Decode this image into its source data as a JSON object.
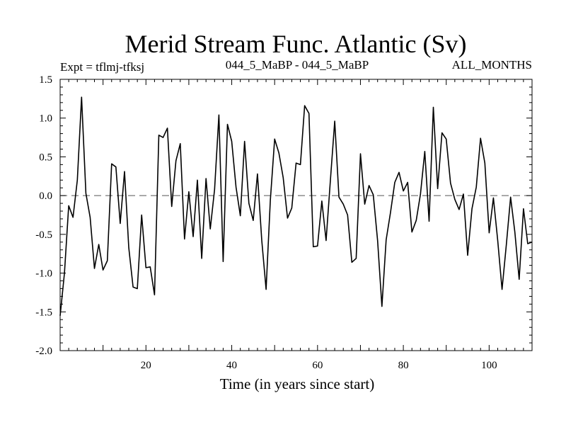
{
  "chart_data": {
    "type": "line",
    "title": "Merid Stream Func. Atlantic (Sv)",
    "subtitle_left": "Expt = tflmj-tfksj",
    "subtitle_center": "044_5_MaBP - 044_5_MaBP",
    "subtitle_right": "ALL_MONTHS",
    "xlabel": "Time (in years since start)",
    "ylabel": "",
    "xlim": [
      0,
      110
    ],
    "ylim": [
      -2.0,
      1.5
    ],
    "x_ticks": [
      20,
      40,
      60,
      80,
      100
    ],
    "x_tick_labels": [
      "20",
      "40",
      "60",
      "80",
      "100"
    ],
    "y_ticks": [
      1.5,
      1.0,
      0.5,
      0.0,
      -0.5,
      -1.0,
      -1.5,
      -2.0
    ],
    "y_tick_labels": [
      "1.5",
      "1.0",
      "0.5",
      "0.0",
      "-0.5",
      "-1.0",
      "-1.5",
      "-2.0"
    ],
    "zero_line": 0.0,
    "series": [
      {
        "name": "Merid Stream Func. Atlantic",
        "x": [
          0,
          1,
          2,
          3,
          4,
          5,
          6,
          7,
          8,
          9,
          10,
          11,
          12,
          13,
          14,
          15,
          16,
          17,
          18,
          19,
          20,
          21,
          22,
          23,
          24,
          25,
          26,
          27,
          28,
          29,
          30,
          31,
          32,
          33,
          34,
          35,
          36,
          37,
          38,
          39,
          40,
          41,
          42,
          43,
          44,
          45,
          46,
          47,
          48,
          49,
          50,
          51,
          52,
          53,
          54,
          55,
          56,
          57,
          58,
          59,
          60,
          61,
          62,
          63,
          64,
          65,
          66,
          67,
          68,
          69,
          70,
          71,
          72,
          73,
          74,
          75,
          76,
          77,
          78,
          79,
          80,
          81,
          82,
          83,
          84,
          85,
          86,
          87,
          88,
          89,
          90,
          91,
          92,
          93,
          94,
          95,
          96,
          97,
          98,
          99,
          100,
          101,
          102,
          103,
          104,
          105,
          106,
          107,
          108,
          109,
          110
        ],
        "y": [
          -1.55,
          -1.0,
          -0.13,
          -0.28,
          0.2,
          1.27,
          0.03,
          -0.28,
          -0.94,
          -0.63,
          -0.96,
          -0.84,
          0.41,
          0.37,
          -0.36,
          0.31,
          -0.67,
          -1.18,
          -1.2,
          -0.25,
          -0.93,
          -0.92,
          -1.28,
          0.78,
          0.75,
          0.87,
          -0.14,
          0.45,
          0.67,
          -0.56,
          0.05,
          -0.53,
          0.2,
          -0.81,
          0.22,
          -0.43,
          0.08,
          1.04,
          -0.85,
          0.92,
          0.7,
          0.11,
          -0.26,
          0.7,
          -0.1,
          -0.32,
          0.28,
          -0.58,
          -1.21,
          -0.06,
          0.73,
          0.55,
          0.23,
          -0.29,
          -0.16,
          0.42,
          0.4,
          1.16,
          1.06,
          -0.66,
          -0.65,
          -0.07,
          -0.58,
          0.2,
          0.96,
          -0.02,
          -0.11,
          -0.25,
          -0.86,
          -0.81,
          0.54,
          -0.11,
          0.13,
          0.01,
          -0.58,
          -1.43,
          -0.57,
          -0.22,
          0.17,
          0.3,
          0.06,
          0.17,
          -0.47,
          -0.32,
          0.02,
          0.57,
          -0.33,
          1.14,
          0.09,
          0.81,
          0.73,
          0.16,
          -0.05,
          -0.18,
          0.02,
          -0.77,
          -0.17,
          0.11,
          0.74,
          0.42,
          -0.48,
          -0.03,
          -0.58,
          -1.21,
          -0.64,
          -0.02,
          -0.47,
          -1.08,
          -0.17,
          -0.62,
          -0.6
        ]
      }
    ]
  }
}
